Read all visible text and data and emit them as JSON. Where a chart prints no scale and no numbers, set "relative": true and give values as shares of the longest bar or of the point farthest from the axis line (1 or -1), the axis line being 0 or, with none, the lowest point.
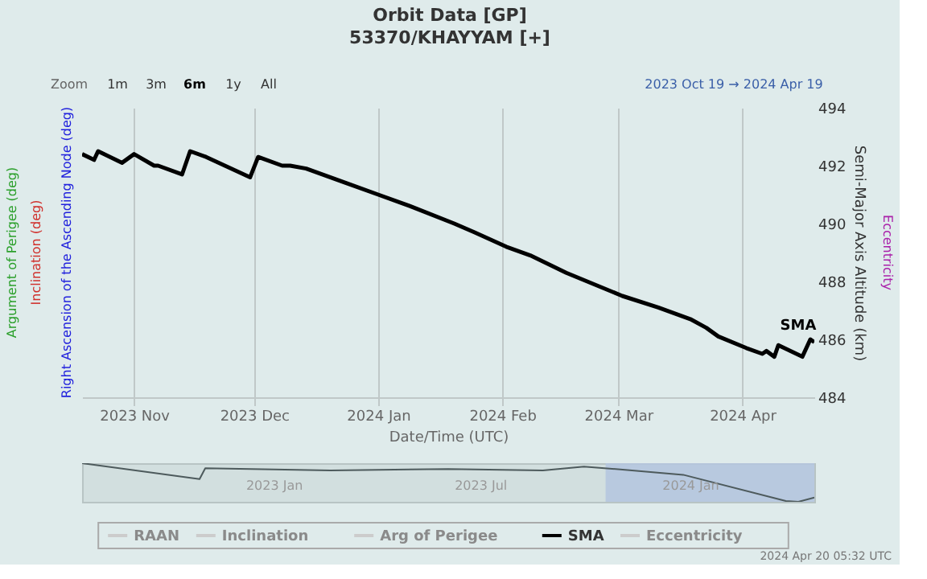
{
  "chart_data": [
    {
      "type": "line",
      "title": "Orbit Data [GP]",
      "subtitle": "53370/KHAYYAM [+]",
      "xlabel": "Date/Time (UTC)",
      "ylabel": "Semi-Major Axis Altitude (km)",
      "x": [
        "2023-10-19",
        "2023-10-22",
        "2023-10-23",
        "2023-10-29",
        "2023-11-01",
        "2023-11-06",
        "2023-11-07",
        "2023-11-13",
        "2023-11-15",
        "2023-11-19",
        "2023-11-30",
        "2023-12-02",
        "2023-12-08",
        "2023-12-10",
        "2023-12-14",
        "2023-12-24",
        "2024-01-01",
        "2024-01-09",
        "2024-01-20",
        "2024-01-25",
        "2024-02-02",
        "2024-02-08",
        "2024-02-17",
        "2024-03-02",
        "2024-03-11",
        "2024-03-19",
        "2024-03-23",
        "2024-03-26",
        "2024-04-02",
        "2024-04-06",
        "2024-04-07",
        "2024-04-09",
        "2024-04-10",
        "2024-04-16",
        "2024-04-18",
        "2024-04-19"
      ],
      "series": [
        {
          "name": "RAAN",
          "color": "#cccccc",
          "values": [
            null,
            null,
            null,
            null,
            null,
            null,
            null,
            null,
            null,
            null,
            null,
            null,
            null,
            null,
            null,
            null,
            null,
            null,
            null,
            null,
            null,
            null,
            null,
            null,
            null,
            null,
            null,
            null,
            null,
            null,
            null,
            null,
            null,
            null,
            null,
            null
          ]
        },
        {
          "name": "Inclination",
          "color": "#cccccc",
          "values": [
            null,
            null,
            null,
            null,
            null,
            null,
            null,
            null,
            null,
            null,
            null,
            null,
            null,
            null,
            null,
            null,
            null,
            null,
            null,
            null,
            null,
            null,
            null,
            null,
            null,
            null,
            null,
            null,
            null,
            null,
            null,
            null,
            null,
            null,
            null,
            null
          ]
        },
        {
          "name": "Arg of Perigee",
          "color": "#cccccc",
          "values": [
            null,
            null,
            null,
            null,
            null,
            null,
            null,
            null,
            null,
            null,
            null,
            null,
            null,
            null,
            null,
            null,
            null,
            null,
            null,
            null,
            null,
            null,
            null,
            null,
            null,
            null,
            null,
            null,
            null,
            null,
            null,
            null,
            null,
            null,
            null,
            null
          ]
        },
        {
          "name": "SMA",
          "color": "#000000",
          "values": [
            492.4,
            492.2,
            492.5,
            492.1,
            492.4,
            492.0,
            492.0,
            491.7,
            492.5,
            492.3,
            491.6,
            492.3,
            492.0,
            492.0,
            491.9,
            491.4,
            491.0,
            490.6,
            490.0,
            489.7,
            489.2,
            488.9,
            488.3,
            487.5,
            487.1,
            486.7,
            486.4,
            486.1,
            485.7,
            485.5,
            485.6,
            485.4,
            485.8,
            485.4,
            486.0,
            485.9
          ]
        },
        {
          "name": "Eccentricity",
          "color": "#cccccc",
          "values": [
            null,
            null,
            null,
            null,
            null,
            null,
            null,
            null,
            null,
            null,
            null,
            null,
            null,
            null,
            null,
            null,
            null,
            null,
            null,
            null,
            null,
            null,
            null,
            null,
            null,
            null,
            null,
            null,
            null,
            null,
            null,
            null,
            null,
            null,
            null,
            null
          ]
        }
      ],
      "xlim": [
        "2023-10-19",
        "2024-04-19"
      ],
      "xticks": [
        {
          "value": "2023-11-01",
          "label": "2023 Nov"
        },
        {
          "value": "2023-12-01",
          "label": "2023 Dec"
        },
        {
          "value": "2024-01-01",
          "label": "2024 Jan"
        },
        {
          "value": "2024-02-01",
          "label": "2024 Feb"
        },
        {
          "value": "2024-03-01",
          "label": "2024 Mar"
        },
        {
          "value": "2024-04-01",
          "label": "2024 Apr"
        }
      ],
      "ylim": [
        484,
        494
      ],
      "yticks": [
        484,
        486,
        488,
        490,
        492,
        494
      ],
      "grid": "x",
      "legend": "bottom",
      "line_style": "solid",
      "marker": "none",
      "annotations": [
        "Zoom",
        "1m",
        "3m",
        "6m",
        "1y",
        "All",
        "2023 Oct 19 → 2024 Apr 19",
        "Argument of Perigee (deg)",
        "Inclination (deg)",
        "Right Ascension of the Ascending Node (deg)",
        "Eccentricity",
        "2024 Apr 20 05:32 UTC"
      ]
    },
    {
      "type": "line",
      "relative": true,
      "x": [
        "2022-07-17",
        "2022-10-28",
        "2022-11-02",
        "2023-02-20",
        "2023-06-03",
        "2023-08-25",
        "2023-09-30",
        "2023-11-05",
        "2023-12-26",
        "2024-03-25",
        "2024-04-05",
        "2024-04-19"
      ],
      "series": [
        {
          "color": "#4d5a5c",
          "values": [
            1.0,
            0.59,
            0.87,
            0.81,
            0.85,
            0.81,
            0.91,
            0.83,
            0.7,
            0.02,
            0.0,
            0.11
          ]
        }
      ],
      "xlim": [
        "2022-07-17",
        "2024-04-19"
      ],
      "xticks": [
        {
          "value": "2023-01-01",
          "label": "2023 Jan"
        },
        {
          "value": "2023-07-01",
          "label": "2023 Jul"
        },
        {
          "value": "2024-01-01",
          "label": "2024 Jan"
        }
      ],
      "bands": [
        {
          "axis": "x",
          "from": "2023-10-19",
          "to": "2024-04-19",
          "color": "#b4c6df"
        }
      ],
      "grid": false,
      "legend": false
    }
  ]
}
